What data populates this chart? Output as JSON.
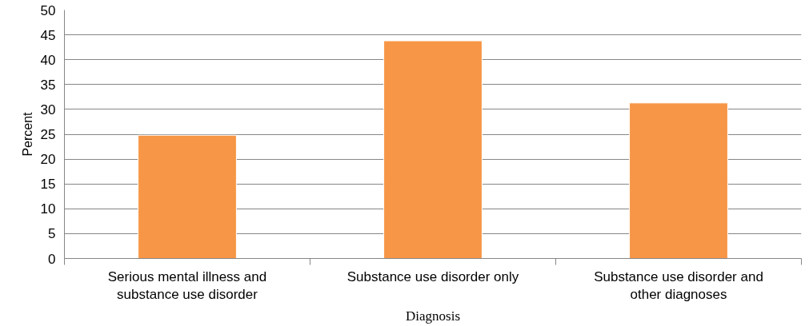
{
  "chart_data": {
    "type": "bar",
    "xlabel": "Diagnosis",
    "ylabel": "Percent",
    "categories": [
      "Serious mental illness and substance use disorder",
      "Substance use disorder only",
      "Substance use disorder and other diagnoses"
    ],
    "values": [
      24.8,
      43.8,
      31.3
    ],
    "color": "#f79646",
    "ylim": [
      0,
      50
    ],
    "yticks": [
      0,
      5,
      10,
      15,
      20,
      25,
      30,
      35,
      40,
      45,
      50
    ],
    "grid": "y"
  }
}
